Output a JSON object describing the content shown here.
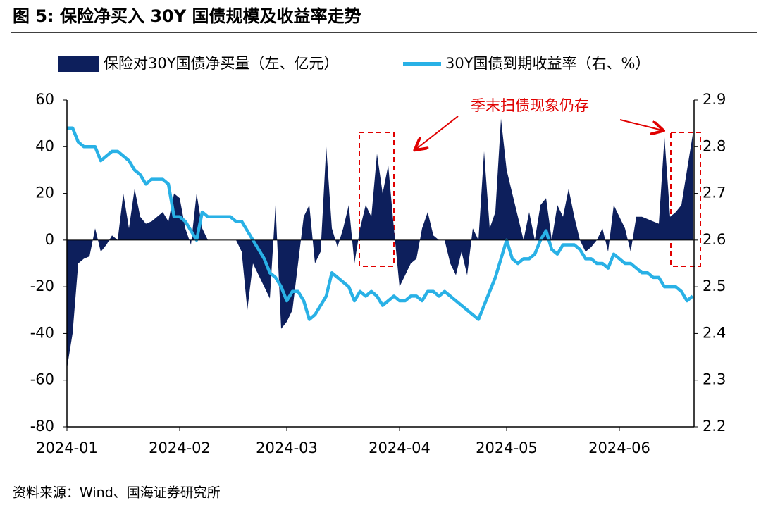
{
  "chart_data": {
    "type": "area_line",
    "title": "图 5:  保险净买入 30Y 国债规模及收益率走势",
    "source": "资料来源：Wind、国海证券研究所",
    "annotation": "季末扫债现象仍存",
    "categories": [
      "2024-01",
      null,
      null,
      null,
      null,
      null,
      null,
      null,
      null,
      null,
      null,
      null,
      null,
      null,
      null,
      null,
      null,
      null,
      null,
      null,
      "2024-02",
      null,
      null,
      null,
      null,
      null,
      null,
      null,
      null,
      null,
      null,
      null,
      null,
      null,
      null,
      null,
      null,
      null,
      null,
      "2024-03",
      null,
      null,
      null,
      null,
      null,
      null,
      null,
      null,
      null,
      null,
      null,
      null,
      null,
      null,
      null,
      null,
      null,
      null,
      null,
      "2024-04",
      null,
      null,
      null,
      null,
      null,
      null,
      null,
      null,
      null,
      null,
      null,
      null,
      null,
      null,
      null,
      null,
      null,
      null,
      "2024-05",
      null,
      null,
      null,
      null,
      null,
      null,
      null,
      null,
      null,
      null,
      null,
      null,
      null,
      null,
      null,
      null,
      null,
      null,
      null,
      "2024-06",
      null,
      null,
      null,
      null,
      null,
      null,
      null,
      null,
      null,
      null,
      null,
      null,
      null
    ],
    "series": [
      {
        "name": "保险对30Y国债净买量（左、亿元）",
        "type": "area",
        "color": "#0d1f5c",
        "values": [
          -55,
          -40,
          -10,
          -8,
          -7,
          5,
          -5,
          -2,
          2,
          0,
          20,
          5,
          22,
          10,
          7,
          8,
          10,
          12,
          8,
          20,
          18,
          5,
          -2,
          20,
          5,
          0,
          0,
          0,
          0,
          0,
          0,
          -5,
          -30,
          -10,
          -15,
          -20,
          -25,
          15,
          -38,
          -35,
          -30,
          -10,
          10,
          15,
          -10,
          -5,
          40,
          5,
          -3,
          5,
          15,
          -10,
          5,
          15,
          10,
          37,
          20,
          32,
          5,
          -20,
          -15,
          -10,
          -8,
          5,
          12,
          2,
          0,
          0,
          -10,
          -15,
          -5,
          -15,
          5,
          0,
          38,
          5,
          12,
          52,
          30,
          20,
          10,
          0,
          12,
          0,
          15,
          18,
          0,
          15,
          10,
          22,
          10,
          0,
          -5,
          -3,
          0,
          5,
          -5,
          15,
          10,
          5,
          -5,
          10,
          10,
          9,
          8,
          7,
          44,
          10,
          12,
          15,
          30,
          45
        ]
      },
      {
        "name": "30Y国债到期收益率（右、%）",
        "type": "line",
        "axis": "y2",
        "color": "#29b1e6",
        "values": [
          2.84,
          2.84,
          2.81,
          2.8,
          2.8,
          2.8,
          2.77,
          2.78,
          2.79,
          2.79,
          2.78,
          2.77,
          2.75,
          2.74,
          2.72,
          2.73,
          2.73,
          2.73,
          2.72,
          2.65,
          2.65,
          2.64,
          2.62,
          2.6,
          2.66,
          2.65,
          2.65,
          2.65,
          2.65,
          2.65,
          2.64,
          2.64,
          2.62,
          2.6,
          2.58,
          2.56,
          2.53,
          2.52,
          2.5,
          2.47,
          2.49,
          2.49,
          2.47,
          2.43,
          2.44,
          2.46,
          2.48,
          2.53,
          2.52,
          2.51,
          2.5,
          2.47,
          2.49,
          2.48,
          2.49,
          2.48,
          2.46,
          2.47,
          2.48,
          2.47,
          2.47,
          2.48,
          2.48,
          2.47,
          2.49,
          2.49,
          2.48,
          2.49,
          2.48,
          2.47,
          2.46,
          2.45,
          2.44,
          2.43,
          2.46,
          2.49,
          2.52,
          2.56,
          2.6,
          2.56,
          2.55,
          2.56,
          2.56,
          2.57,
          2.6,
          2.62,
          2.58,
          2.57,
          2.59,
          2.59,
          2.59,
          2.58,
          2.56,
          2.56,
          2.55,
          2.55,
          2.54,
          2.57,
          2.56,
          2.55,
          2.55,
          2.54,
          2.53,
          2.53,
          2.52,
          2.52,
          2.5,
          2.5,
          2.5,
          2.49,
          2.47,
          2.48
        ]
      }
    ],
    "ylim": [
      -80,
      60
    ],
    "yticks": [
      60,
      40,
      20,
      0,
      -20,
      -40,
      -60,
      -80
    ],
    "y2lim": [
      2.2,
      2.9
    ],
    "y2ticks": [
      2.9,
      2.8,
      2.7,
      2.6,
      2.5,
      2.4,
      2.3,
      2.2
    ],
    "grid": false
  }
}
